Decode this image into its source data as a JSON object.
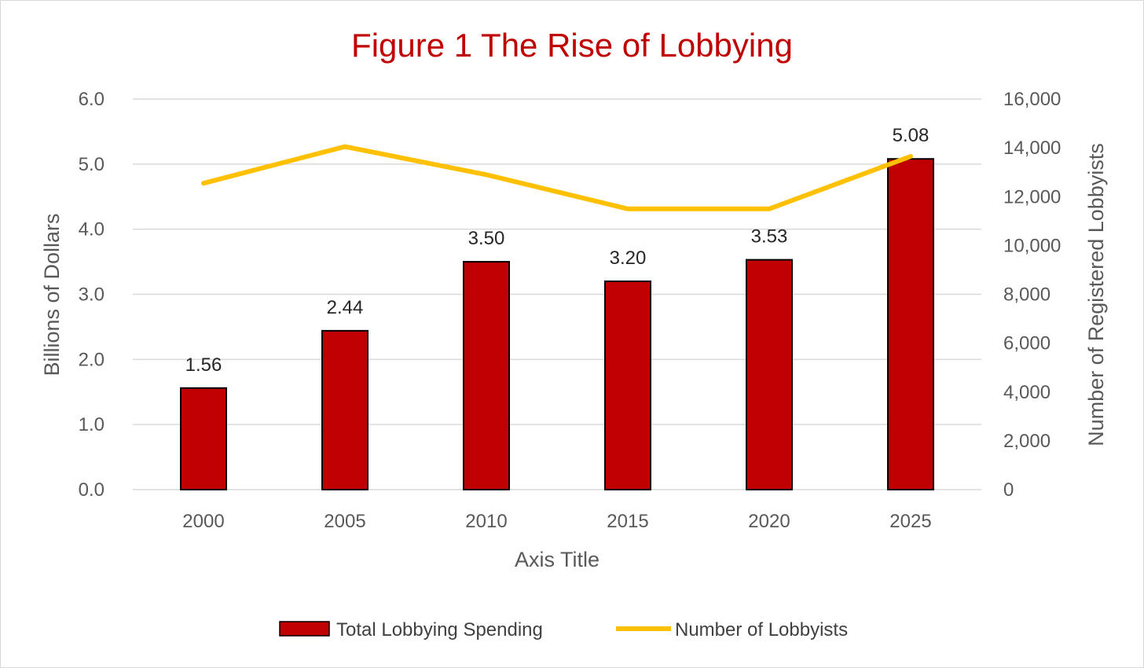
{
  "chart_data": {
    "type": "bar",
    "title": "Figure 1 The Rise of Lobbying",
    "categories": [
      "2000",
      "2005",
      "2010",
      "2015",
      "2020",
      "2025"
    ],
    "xlabel": "Axis Title",
    "ylabel": "Billions of Dollars",
    "y2label": "Number of Registered Lobbyists",
    "ylim": [
      0,
      6
    ],
    "y2lim": [
      0,
      16000
    ],
    "y_ticks": [
      "0.0",
      "1.0",
      "2.0",
      "3.0",
      "4.0",
      "5.0",
      "6.0"
    ],
    "y2_ticks": [
      "0",
      "2,000",
      "4,000",
      "6,000",
      "8,000",
      "10,000",
      "12,000",
      "14,000",
      "16,000"
    ],
    "grid": true,
    "legend_position": "bottom",
    "series": [
      {
        "name": "Total Lobbying Spending",
        "type": "bar",
        "axis": "left",
        "color": "#c00000",
        "values": [
          1.56,
          2.44,
          3.5,
          3.2,
          3.53,
          5.08
        ],
        "labels": [
          "1.56",
          "2.44",
          "3.50",
          "3.20",
          "3.53",
          "5.08"
        ]
      },
      {
        "name": "Number of Lobbyists",
        "type": "line",
        "axis": "right",
        "color": "#ffc000",
        "values": [
          12550,
          14050,
          12900,
          11500,
          11500,
          13650
        ]
      }
    ]
  }
}
